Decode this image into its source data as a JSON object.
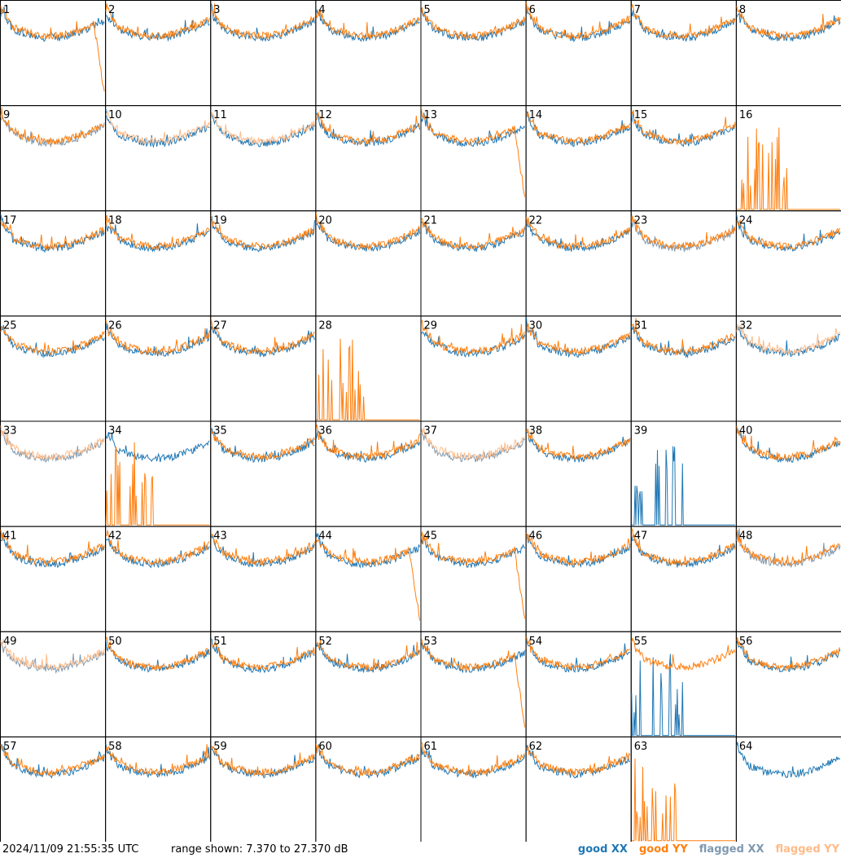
{
  "chart_data": {
    "type": "line",
    "panel_count": 64,
    "panels": [
      "1",
      "2",
      "3",
      "4",
      "5",
      "6",
      "7",
      "8",
      "9",
      "10",
      "11",
      "12",
      "13",
      "14",
      "15",
      "16",
      "17",
      "18",
      "19",
      "20",
      "21",
      "22",
      "23",
      "24",
      "25",
      "26",
      "27",
      "28",
      "29",
      "30",
      "31",
      "32",
      "33",
      "34",
      "35",
      "36",
      "37",
      "38",
      "39",
      "40",
      "41",
      "42",
      "43",
      "44",
      "45",
      "46",
      "47",
      "48",
      "49",
      "50",
      "51",
      "52",
      "53",
      "54",
      "55",
      "56",
      "57",
      "58",
      "59",
      "60",
      "61",
      "62",
      "63",
      "64"
    ],
    "ylim": [
      7.37,
      27.37
    ],
    "yunit": "dB",
    "series_styles": {
      "good_xx": "#1f77b4",
      "good_yy": "#ff7f0e",
      "flagged_xx": "#7f99b0",
      "flagged_yy": "#ffbb88"
    },
    "panel_notes": {
      "flagged_xx": [
        "9",
        "23",
        "48"
      ],
      "flagged_yy": [
        "10",
        "11",
        "32"
      ],
      "flagged_both": [
        "33",
        "37",
        "49"
      ],
      "xx_absent": [
        "16",
        "28",
        "63"
      ],
      "yy_absent": [
        "39",
        "64"
      ]
    }
  },
  "footer": {
    "timestamp": "2024/11/09 21:55:35 UTC",
    "range_text": "range shown: 7.370 to 27.370 dB"
  },
  "legend": [
    {
      "prefix": "good ",
      "pol": "XX",
      "color": "#1f77b4"
    },
    {
      "prefix": "good ",
      "pol": "YY",
      "color": "#ff7f0e"
    },
    {
      "prefix": "flagged ",
      "pol": "XX",
      "color": "#7f99b0"
    },
    {
      "prefix": "flagged ",
      "pol": "YY",
      "color": "#ffbb88"
    }
  ]
}
